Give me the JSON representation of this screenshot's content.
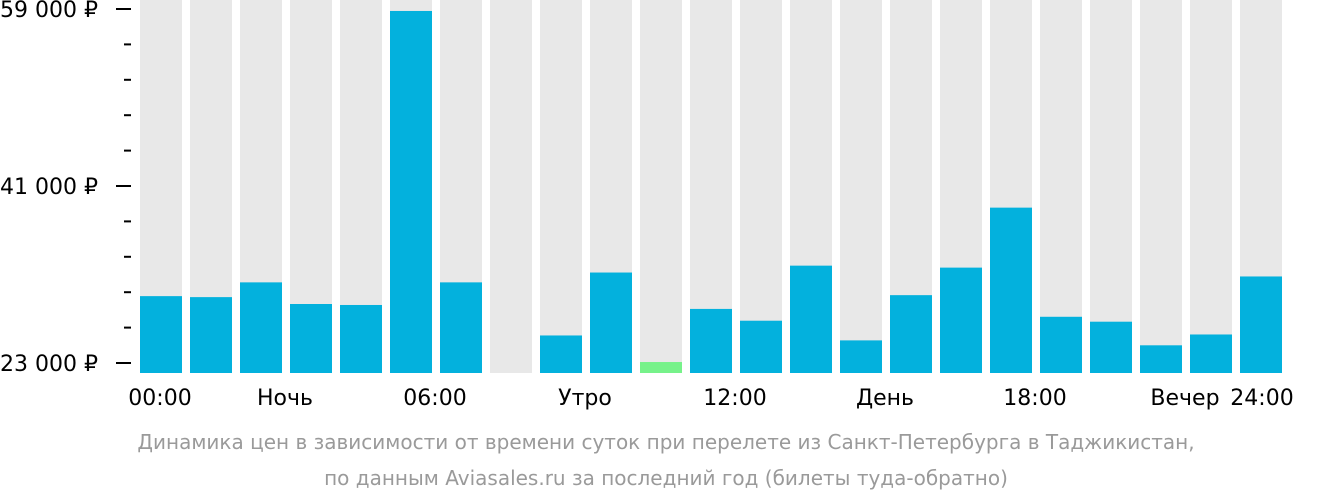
{
  "chart_data": {
    "type": "bar",
    "ylim": [
      23000,
      59000
    ],
    "y_tick_labels": [
      "59 000 ₽",
      "41 000 ₽",
      "23 000 ₽"
    ],
    "y_tick_values": [
      59000,
      41000,
      23000
    ],
    "x_labels": [
      "00:00",
      "Ночь",
      "06:00",
      "Утро",
      "12:00",
      "День",
      "18:00",
      "Вечер",
      "24:00"
    ],
    "values": [
      29800,
      29700,
      31200,
      29000,
      28900,
      58800,
      31200,
      null,
      25800,
      32200,
      23100,
      28500,
      27300,
      32900,
      25300,
      29900,
      32700,
      38800,
      27700,
      27200,
      24800,
      25900,
      31800
    ],
    "highlight_index": 10,
    "colors": {
      "bar": "#03b1dd",
      "highlight": "#77f28a",
      "background": "#e8e8e8",
      "axis": "#000000",
      "caption": "#9a9a9a"
    },
    "grid": false
  },
  "caption": {
    "line1": "Динамика цен в зависимости от времени суток при перелете из Санкт-Петербурга в Таджикистан,",
    "line2": "по данным Aviasales.ru за последний год (билеты туда-обратно)"
  }
}
